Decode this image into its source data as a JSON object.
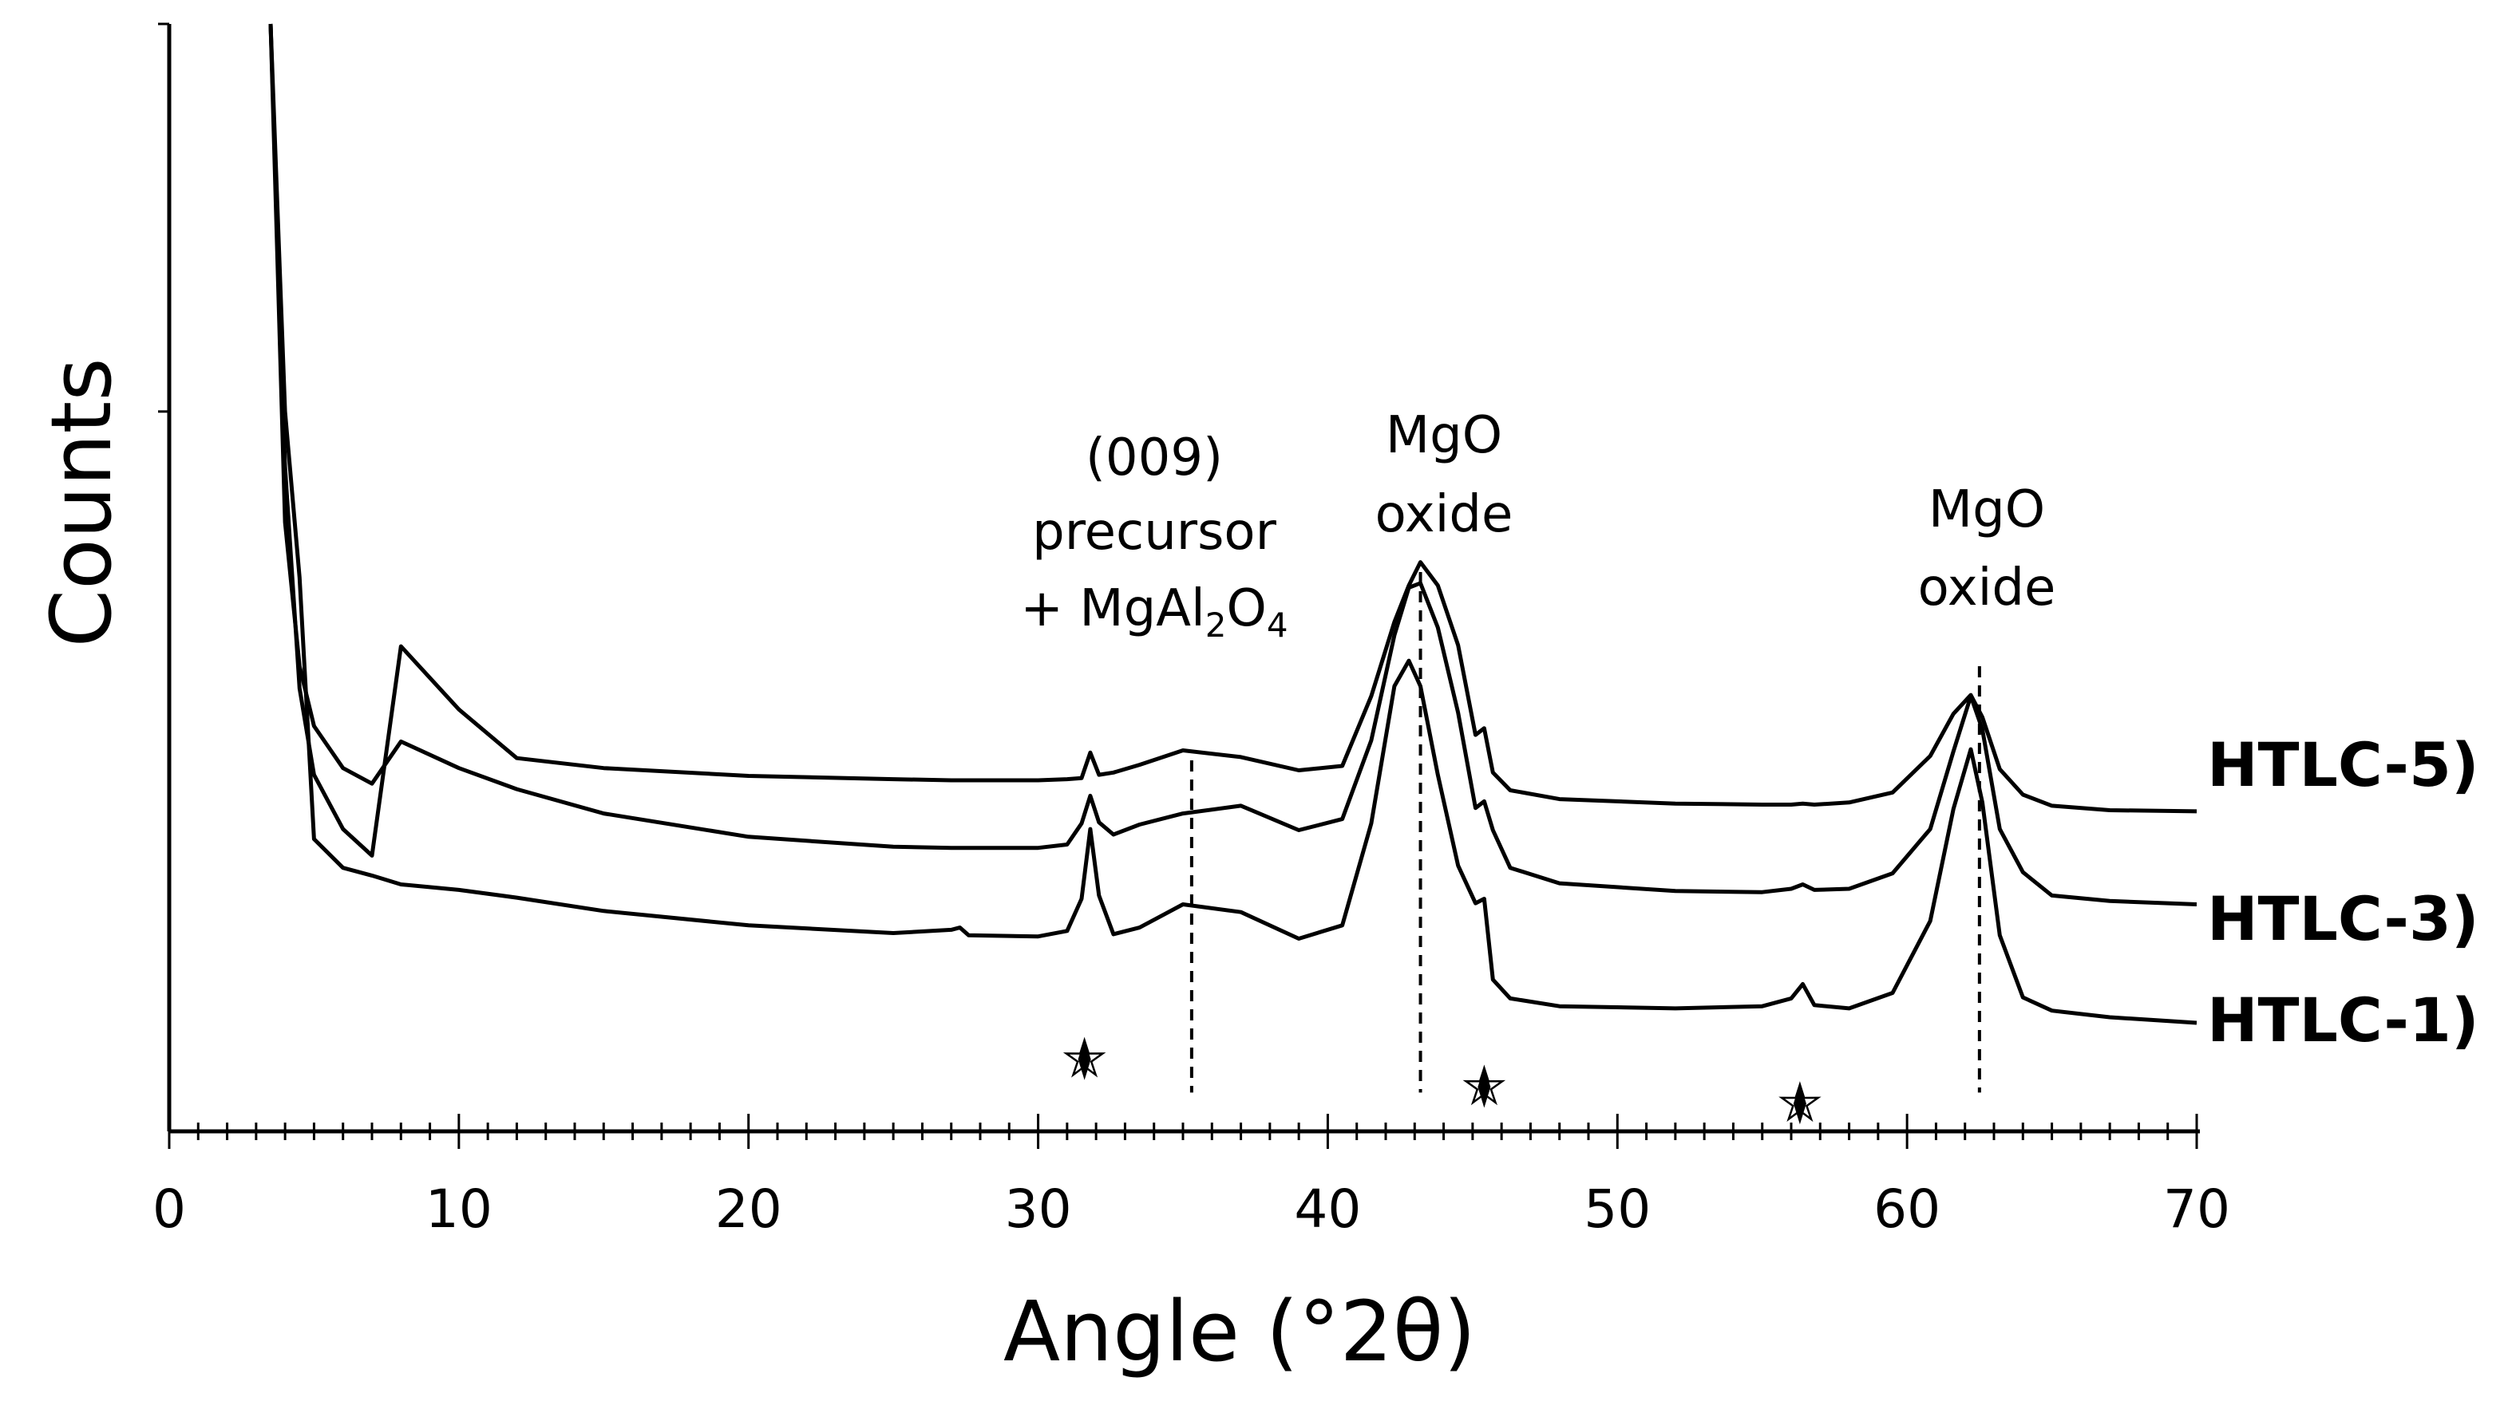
{
  "chart_data": {
    "type": "line",
    "title": "",
    "xlabel": "Angle (°2θ)",
    "ylabel": "Counts",
    "xlim": [
      0,
      70
    ],
    "ylim": [
      0,
      100
    ],
    "x_ticks": [
      "0",
      "10",
      "20",
      "30",
      "40",
      "50",
      "60",
      "70"
    ],
    "x_ticks_values": [
      0,
      10,
      20,
      30,
      40,
      50,
      60,
      70
    ],
    "x_minor_step": 1,
    "y_tick_values": [
      65,
      100
    ],
    "grid": false,
    "x": [
      3.5,
      4,
      4.5,
      5,
      6,
      7,
      8,
      10,
      12,
      15,
      20,
      25,
      27,
      27.3,
      27.6,
      30,
      31,
      31.5,
      31.8,
      32.1,
      32.6,
      33.5,
      35,
      37,
      39,
      40.5,
      41.5,
      42.3,
      42.8,
      43.2,
      43.8,
      44.5,
      45.1,
      45.4,
      45.7,
      46.3,
      48,
      52,
      55,
      56,
      56.4,
      56.8,
      58,
      59.5,
      60.8,
      61.6,
      62.2,
      62.6,
      63.2,
      64,
      65,
      67,
      70
    ],
    "series": [
      {
        "name": "HTLC-5)",
        "values": [
          100,
          60,
          40,
          32.2,
          27.3,
          24.9,
          43.8,
          38.1,
          33.7,
          32.8,
          32.1,
          31.8,
          31.7,
          31.7,
          31.7,
          31.7,
          31.8,
          31.9,
          34.2,
          32.2,
          32.4,
          33.1,
          34.4,
          33.8,
          32.6,
          33,
          39.3,
          46,
          49.3,
          51.4,
          49.3,
          43.9,
          35.8,
          36.4,
          32.4,
          30.8,
          30,
          29.6,
          29.5,
          29.5,
          29.6,
          29.5,
          29.7,
          30.6,
          33.9,
          37.7,
          39.4,
          37.4,
          32.7,
          30.4,
          29.4,
          29,
          28.9
        ]
      },
      {
        "name": "HTLC-3)",
        "values": [
          100,
          55,
          42,
          36.6,
          32.8,
          31.4,
          35.2,
          32.8,
          30.9,
          28.7,
          26.6,
          25.7,
          25.6,
          25.6,
          25.6,
          25.6,
          25.9,
          27.8,
          30.3,
          27.9,
          26.8,
          27.7,
          28.7,
          29.4,
          27.2,
          28.2,
          35.3,
          44.8,
          49.1,
          49.5,
          45.5,
          37.8,
          29.2,
          29.8,
          27.2,
          23.8,
          22.4,
          21.7,
          21.6,
          21.9,
          22.3,
          21.8,
          21.9,
          23.3,
          27.3,
          34.3,
          39.3,
          36.3,
          27.3,
          23.4,
          21.3,
          20.8,
          20.5
        ]
      },
      {
        "name": "HTLC-1)",
        "values": [
          100,
          65,
          50,
          26.4,
          23.8,
          23.1,
          22.3,
          21.8,
          21.1,
          19.9,
          18.6,
          17.9,
          18.2,
          18.4,
          17.7,
          17.6,
          18.1,
          21,
          27.3,
          21.3,
          17.8,
          18.4,
          20.5,
          19.8,
          17.4,
          18.6,
          27.8,
          40.2,
          42.5,
          40.2,
          32.2,
          24,
          20.6,
          21,
          13.7,
          12,
          11.3,
          11.1,
          11.3,
          12,
          13.3,
          11.4,
          11.1,
          12.5,
          19,
          29.1,
          34.5,
          29.7,
          17.7,
          12.1,
          10.9,
          10.3,
          9.8
        ]
      }
    ],
    "reference_lines": [
      35.3,
      43.2,
      62.5
    ],
    "annotations": [
      {
        "label": "(009)",
        "x": 33.5
      },
      {
        "label": "precursor",
        "x": 33.5
      },
      {
        "label": "+ MgAl",
        "x": 33.5
      },
      {
        "label": "2",
        "x": 33.5
      },
      {
        "label": "O",
        "x": 33.5
      },
      {
        "label": "4",
        "x": 33.5
      },
      {
        "label": "MgO",
        "x": 43.4
      },
      {
        "label": "oxide",
        "x": 43.4
      },
      {
        "label": "MgO",
        "x": 62.8
      },
      {
        "label": "oxide",
        "x": 62.8
      }
    ],
    "star_markers": [
      31.6,
      45.4,
      56.3
    ],
    "legend": "right, labels at end of each trace"
  }
}
